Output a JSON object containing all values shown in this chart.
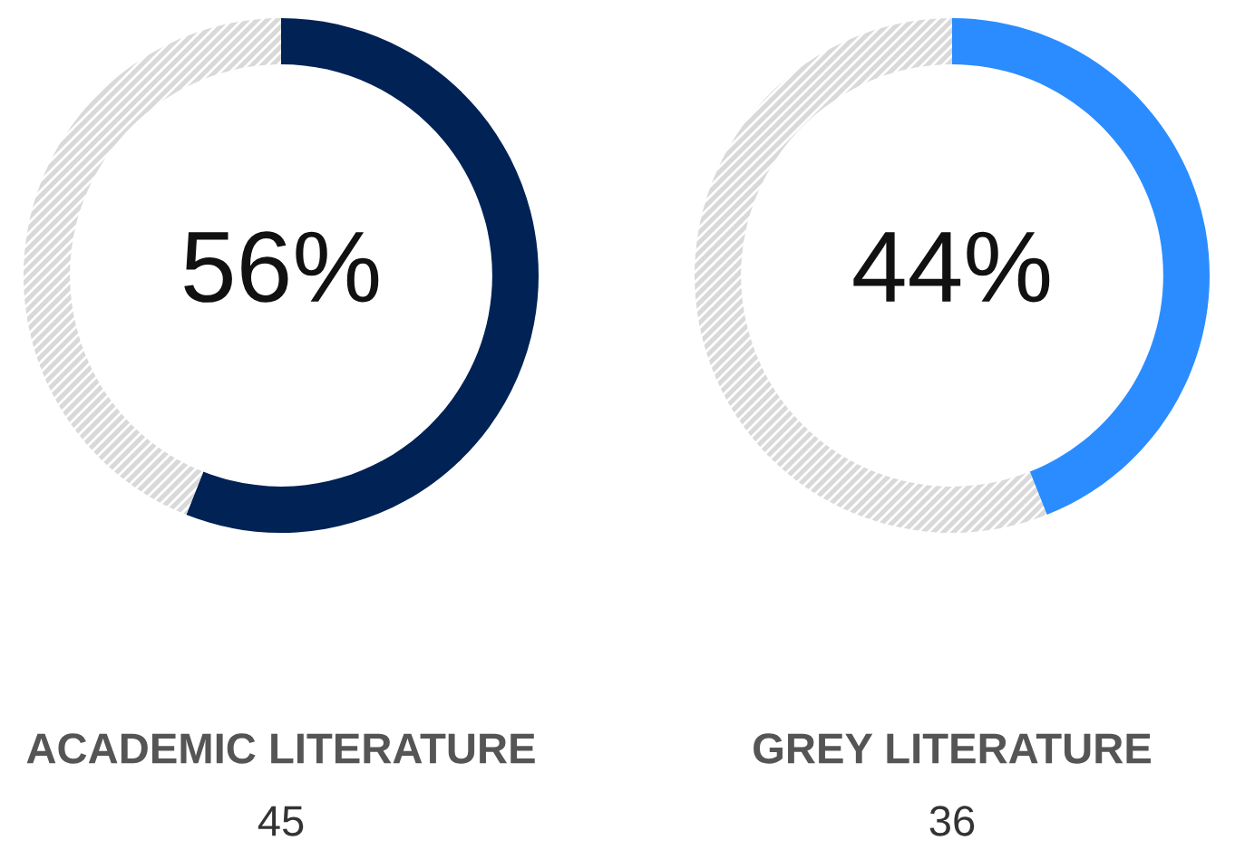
{
  "chart_data": [
    {
      "type": "donut",
      "title": "ACADEMIC LITERATURE",
      "subtitle": "45",
      "annotations": [
        "56%"
      ],
      "categories": [
        null,
        null
      ],
      "values": [
        56,
        44
      ],
      "colors": [
        "#002255",
        "#d9d9d9"
      ]
    },
    {
      "type": "donut",
      "title": "GREY LITERATURE",
      "subtitle": "36",
      "annotations": [
        "44%"
      ],
      "categories": [
        null,
        null
      ],
      "values": [
        44,
        56
      ],
      "colors": [
        "#2b8cff",
        "#d9d9d9"
      ]
    }
  ]
}
